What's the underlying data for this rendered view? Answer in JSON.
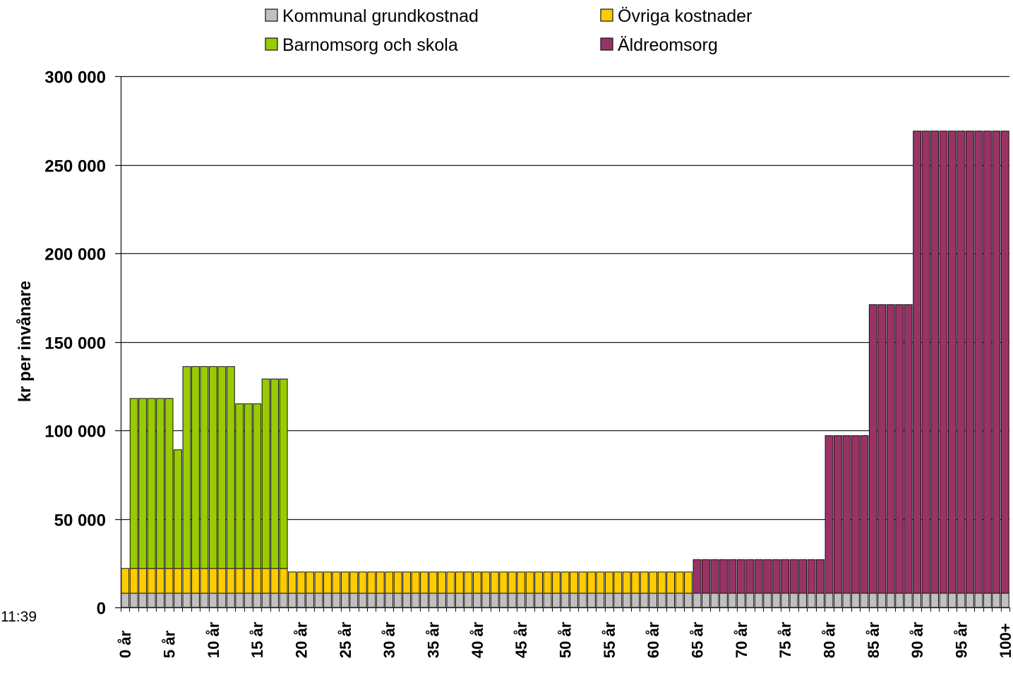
{
  "page": {
    "timestamp_text": "11:39"
  },
  "chart_data": {
    "type": "bar",
    "stacked": true,
    "ylabel": "kr per invånare",
    "ylim": [
      0,
      300000
    ],
    "yticks": [
      0,
      50000,
      100000,
      150000,
      200000,
      250000,
      300000
    ],
    "ytick_labels": [
      "0",
      "50 000",
      "100 000",
      "150 000",
      "200 000",
      "250 000",
      "300 000"
    ],
    "grid": true,
    "legend_position": "top",
    "x": [
      0,
      1,
      2,
      3,
      4,
      5,
      6,
      7,
      8,
      9,
      10,
      11,
      12,
      13,
      14,
      15,
      16,
      17,
      18,
      19,
      20,
      21,
      22,
      23,
      24,
      25,
      26,
      27,
      28,
      29,
      30,
      31,
      32,
      33,
      34,
      35,
      36,
      37,
      38,
      39,
      40,
      41,
      42,
      43,
      44,
      45,
      46,
      47,
      48,
      49,
      50,
      51,
      52,
      53,
      54,
      55,
      56,
      57,
      58,
      59,
      60,
      61,
      62,
      63,
      64,
      65,
      66,
      67,
      68,
      69,
      70,
      71,
      72,
      73,
      74,
      75,
      76,
      77,
      78,
      79,
      80,
      81,
      82,
      83,
      84,
      85,
      86,
      87,
      88,
      89,
      90,
      91,
      92,
      93,
      94,
      95,
      96,
      97,
      98,
      99,
      100
    ],
    "xtick_step": 5,
    "xtick_labels": [
      "0 år",
      "5 år",
      "10 år",
      "15 år",
      "20 år",
      "25 år",
      "30 år",
      "35 år",
      "40 år",
      "45 år",
      "50 år",
      "55 år",
      "60 år",
      "65 år",
      "70 år",
      "75 år",
      "80 år",
      "85 år",
      "90 år",
      "95 år",
      "100+"
    ],
    "series": [
      {
        "name": "Kommunal grundkostnad",
        "color": "#c0c0c0",
        "values": [
          8000,
          8000,
          8000,
          8000,
          8000,
          8000,
          8000,
          8000,
          8000,
          8000,
          8000,
          8000,
          8000,
          8000,
          8000,
          8000,
          8000,
          8000,
          8000,
          8000,
          8000,
          8000,
          8000,
          8000,
          8000,
          8000,
          8000,
          8000,
          8000,
          8000,
          8000,
          8000,
          8000,
          8000,
          8000,
          8000,
          8000,
          8000,
          8000,
          8000,
          8000,
          8000,
          8000,
          8000,
          8000,
          8000,
          8000,
          8000,
          8000,
          8000,
          8000,
          8000,
          8000,
          8000,
          8000,
          8000,
          8000,
          8000,
          8000,
          8000,
          8000,
          8000,
          8000,
          8000,
          8000,
          8000,
          8000,
          8000,
          8000,
          8000,
          8000,
          8000,
          8000,
          8000,
          8000,
          8000,
          8000,
          8000,
          8000,
          8000,
          8000,
          8000,
          8000,
          8000,
          8000,
          8000,
          8000,
          8000,
          8000,
          8000,
          8000,
          8000,
          8000,
          8000,
          8000,
          8000,
          8000,
          8000,
          8000,
          8000,
          8000
        ]
      },
      {
        "name": "Övriga kostnader",
        "color": "#ffcc00",
        "values": [
          14000,
          14000,
          14000,
          14000,
          14000,
          14000,
          14000,
          14000,
          14000,
          14000,
          14000,
          14000,
          14000,
          14000,
          14000,
          14000,
          14000,
          14000,
          14000,
          12000,
          12000,
          12000,
          12000,
          12000,
          12000,
          12000,
          12000,
          12000,
          12000,
          12000,
          12000,
          12000,
          12000,
          12000,
          12000,
          12000,
          12000,
          12000,
          12000,
          12000,
          12000,
          12000,
          12000,
          12000,
          12000,
          12000,
          12000,
          12000,
          12000,
          12000,
          12000,
          12000,
          12000,
          12000,
          12000,
          12000,
          12000,
          12000,
          12000,
          12000,
          12000,
          12000,
          12000,
          12000,
          12000,
          0,
          0,
          0,
          0,
          0,
          0,
          0,
          0,
          0,
          0,
          0,
          0,
          0,
          0,
          0,
          0,
          0,
          0,
          0,
          0,
          0,
          0,
          0,
          0,
          0,
          0,
          0,
          0,
          0,
          0,
          0,
          0,
          0,
          0,
          0,
          0
        ]
      },
      {
        "name": "Barnomsorg och skola",
        "color": "#99cc00",
        "values": [
          0,
          96000,
          96000,
          96000,
          96000,
          96000,
          67000,
          114000,
          114000,
          114000,
          114000,
          114000,
          114000,
          93000,
          93000,
          93000,
          107000,
          107000,
          107000,
          0,
          0,
          0,
          0,
          0,
          0,
          0,
          0,
          0,
          0,
          0,
          0,
          0,
          0,
          0,
          0,
          0,
          0,
          0,
          0,
          0,
          0,
          0,
          0,
          0,
          0,
          0,
          0,
          0,
          0,
          0,
          0,
          0,
          0,
          0,
          0,
          0,
          0,
          0,
          0,
          0,
          0,
          0,
          0,
          0,
          0,
          0,
          0,
          0,
          0,
          0,
          0,
          0,
          0,
          0,
          0,
          0,
          0,
          0,
          0,
          0,
          0,
          0,
          0,
          0,
          0,
          0,
          0,
          0,
          0,
          0,
          0,
          0,
          0,
          0,
          0,
          0,
          0,
          0,
          0,
          0,
          0
        ]
      },
      {
        "name": "Äldreomsorg",
        "color": "#993366",
        "values": [
          0,
          0,
          0,
          0,
          0,
          0,
          0,
          0,
          0,
          0,
          0,
          0,
          0,
          0,
          0,
          0,
          0,
          0,
          0,
          0,
          0,
          0,
          0,
          0,
          0,
          0,
          0,
          0,
          0,
          0,
          0,
          0,
          0,
          0,
          0,
          0,
          0,
          0,
          0,
          0,
          0,
          0,
          0,
          0,
          0,
          0,
          0,
          0,
          0,
          0,
          0,
          0,
          0,
          0,
          0,
          0,
          0,
          0,
          0,
          0,
          0,
          0,
          0,
          0,
          0,
          19000,
          19000,
          19000,
          19000,
          19000,
          19000,
          19000,
          19000,
          19000,
          19000,
          19000,
          19000,
          19000,
          19000,
          19000,
          89000,
          89000,
          89000,
          89000,
          89000,
          163000,
          163000,
          163000,
          163000,
          163000,
          261000,
          261000,
          261000,
          261000,
          261000,
          261000,
          261000,
          261000,
          261000,
          261000,
          261000
        ]
      }
    ]
  }
}
